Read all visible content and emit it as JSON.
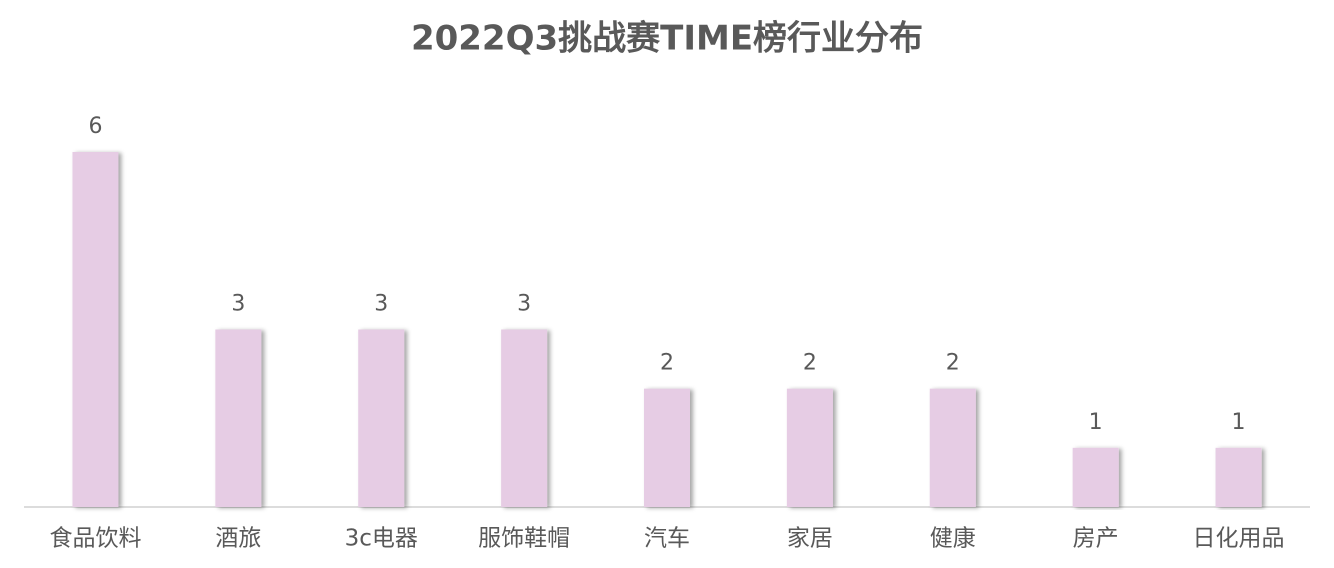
{
  "chart_data": {
    "type": "bar",
    "title": "2022Q3挑战赛TIME榜行业分布",
    "categories": [
      "食品饮料",
      "酒旅",
      "3c电器",
      "服饰鞋帽",
      "汽车",
      "家居",
      "健康",
      "房产",
      "日化用品"
    ],
    "values": [
      6,
      3,
      3,
      3,
      2,
      2,
      2,
      1,
      1
    ],
    "color": "#e6cce4"
  }
}
